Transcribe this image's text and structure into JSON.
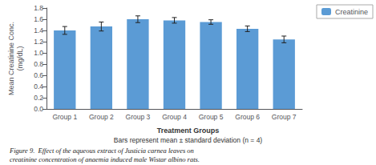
{
  "chart_data": {
    "type": "bar",
    "categories": [
      "Group 1",
      "Group 2",
      "Group 3",
      "Group 4",
      "Group 5",
      "Group 6",
      "Group 7"
    ],
    "series": [
      {
        "name": "Creatinine",
        "color": "#5B9BD5",
        "values": [
          1.4,
          1.47,
          1.6,
          1.58,
          1.55,
          1.43,
          1.24
        ],
        "errors": [
          0.07,
          0.08,
          0.06,
          0.05,
          0.04,
          0.05,
          0.06
        ]
      }
    ],
    "ylabel": "Mean Creatinine Conc.\n(mg/dL)",
    "xlabel": "Treatment Groups",
    "annotations": [
      "Bars represent mean ± standard deviation (n = 4)",
      "Figure 9.  Effect of the aqueous extract of Justicia carnea leaves on\ncreatinine concentration of anaemia induced male Wistar albino rats."
    ],
    "ylim": [
      0,
      1.8
    ],
    "yticks": [
      {
        "value": 0.0,
        "label": "0.0"
      },
      0.2,
      0.4,
      0.6,
      0.8,
      {
        "value": 1.0,
        "label": "1.0"
      },
      1.2,
      1.4,
      1.6,
      1.8
    ],
    "grid": false,
    "legend": "upper right"
  }
}
